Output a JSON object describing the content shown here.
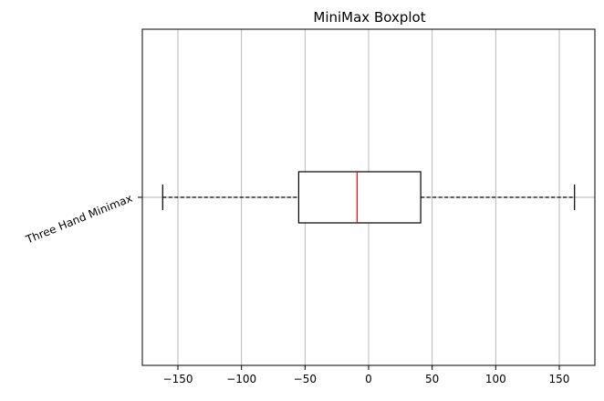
{
  "chart_data": {
    "type": "boxplot",
    "orientation": "horizontal",
    "title": "MiniMax Boxplot",
    "xlabel": "",
    "ylabel": "",
    "xlim": [
      -178,
      178
    ],
    "x_ticks": [
      -150,
      -100,
      -50,
      0,
      50,
      100,
      150
    ],
    "x_tick_labels": [
      "−150",
      "−100",
      "−50",
      "0",
      "50",
      "100",
      "150"
    ],
    "grid": "vertical",
    "series": [
      {
        "name": "Three Hand Minimax",
        "whisker_low": -162,
        "q1": -55,
        "median": -9,
        "q3": 41,
        "whisker_high": 162
      }
    ],
    "colors": {
      "box": "#000000",
      "median": "#ff0000",
      "grid": "#b0b0b0",
      "whisker": "#000000"
    }
  }
}
